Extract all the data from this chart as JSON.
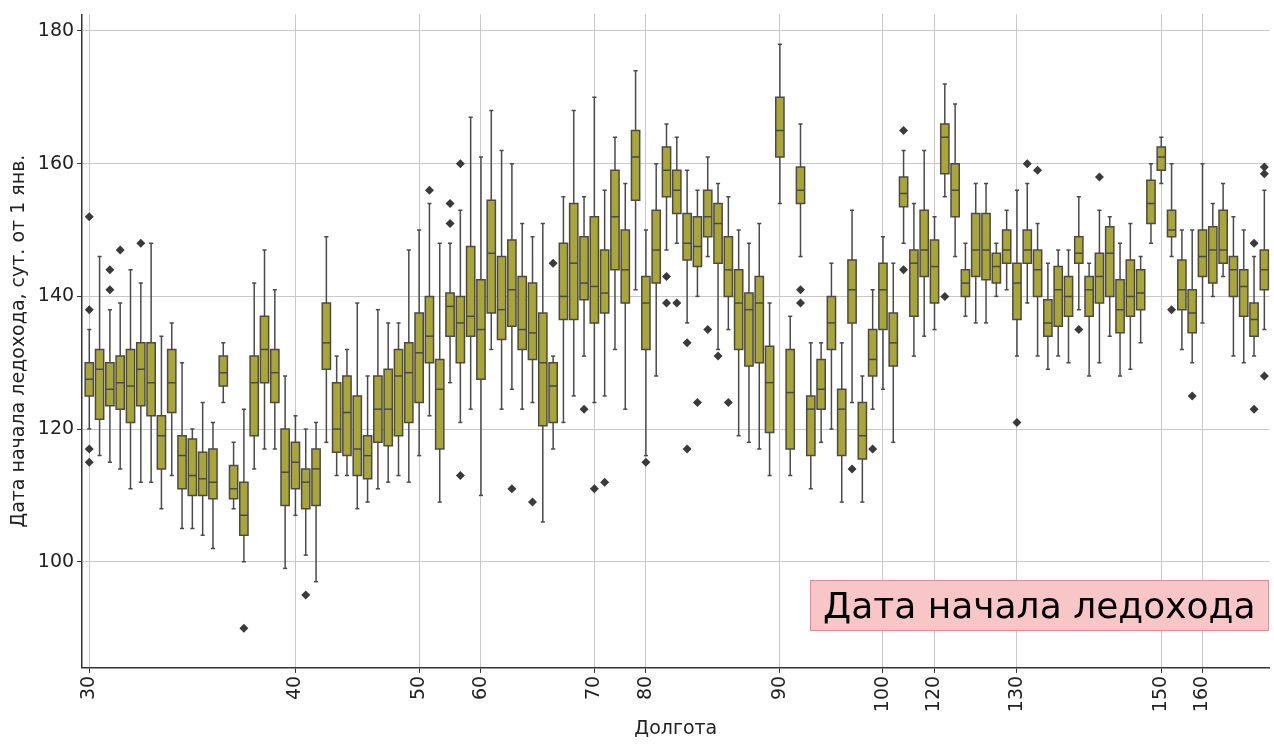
{
  "chart_data": {
    "type": "box",
    "xlabel": "Долгота",
    "ylabel": "Дата начала ледохода, сут. от 1 янв.",
    "color": "#a9a637",
    "grid": true,
    "ylim": [
      84,
      182.5
    ],
    "yticks": [
      100,
      120,
      140,
      160,
      180
    ],
    "annotations": [
      "Дата начала ледохода"
    ],
    "categories": [
      "30",
      null,
      null,
      null,
      null,
      null,
      null,
      null,
      null,
      null,
      null,
      null,
      null,
      null,
      null,
      null,
      null,
      null,
      null,
      null,
      "40",
      null,
      null,
      null,
      null,
      null,
      null,
      null,
      null,
      null,
      null,
      null,
      "50",
      null,
      null,
      null,
      null,
      null,
      "60",
      null,
      null,
      null,
      null,
      null,
      null,
      null,
      null,
      null,
      null,
      "70",
      null,
      null,
      null,
      null,
      "80",
      null,
      null,
      null,
      null,
      null,
      null,
      null,
      null,
      null,
      null,
      null,
      null,
      "90",
      null,
      null,
      null,
      null,
      null,
      null,
      null,
      null,
      null,
      "100",
      null,
      null,
      null,
      null,
      "120",
      null,
      null,
      null,
      null,
      null,
      null,
      null,
      "130",
      null,
      null,
      null,
      null,
      null,
      null,
      null,
      null,
      null,
      null,
      null,
      null,
      null,
      "150",
      null,
      null,
      null,
      "160",
      null,
      null,
      null,
      null,
      null,
      null
    ],
    "boxes": [
      {
        "low": 120,
        "q1": 125,
        "median": 127.5,
        "q3": 130,
        "high": 135,
        "outliers": [
          152,
          138,
          117,
          115
        ]
      },
      {
        "low": 116,
        "q1": 121.5,
        "median": 129,
        "q3": 132,
        "high": 146
      },
      {
        "low": 115,
        "q1": 123.5,
        "median": 126,
        "q3": 130,
        "high": 138,
        "outliers": [
          144,
          141
        ]
      },
      {
        "low": 114,
        "q1": 123,
        "median": 127,
        "q3": 131,
        "high": 139,
        "outliers": [
          147
        ]
      },
      {
        "low": 111,
        "q1": 121,
        "median": 126.5,
        "q3": 132,
        "high": 144
      },
      {
        "low": 112,
        "q1": 123.5,
        "median": 129,
        "q3": 133,
        "high": 142,
        "outliers": [
          148
        ]
      },
      {
        "low": 112,
        "q1": 122,
        "median": 127,
        "q3": 133,
        "high": 148
      },
      {
        "low": 108,
        "q1": 114,
        "median": 119,
        "q3": 122,
        "high": 134
      },
      {
        "low": 113,
        "q1": 122.5,
        "median": 127,
        "q3": 132,
        "high": 136
      },
      {
        "low": 105,
        "q1": 111,
        "median": 116,
        "q3": 119,
        "high": 130
      },
      {
        "low": 105,
        "q1": 110,
        "median": 113,
        "q3": 118.5,
        "high": 120
      },
      {
        "low": 104,
        "q1": 110,
        "median": 112.5,
        "q3": 116.5,
        "high": 124
      },
      {
        "low": 102,
        "q1": 109.5,
        "median": 112,
        "q3": 117,
        "high": 121
      },
      {
        "low": 124,
        "q1": 126.5,
        "median": 128.5,
        "q3": 131,
        "high": 133
      },
      {
        "low": 108,
        "q1": 109.5,
        "median": 111,
        "q3": 114.5,
        "high": 118
      },
      {
        "low": 100,
        "q1": 104,
        "median": 107,
        "q3": 112,
        "high": 123,
        "outliers": [
          90
        ]
      },
      {
        "low": 114,
        "q1": 119,
        "median": 127,
        "q3": 131,
        "high": 142
      },
      {
        "low": 117,
        "q1": 127,
        "median": 132,
        "q3": 137,
        "high": 147
      },
      {
        "low": 117,
        "q1": 124,
        "median": 128.5,
        "q3": 132,
        "high": 141
      },
      {
        "low": 99,
        "q1": 108.5,
        "median": 113.5,
        "q3": 120,
        "high": 128
      },
      {
        "low": 107,
        "q1": 111,
        "median": 115,
        "q3": 118,
        "high": 122
      },
      {
        "low": 101,
        "q1": 108,
        "median": 112,
        "q3": 114,
        "high": 120,
        "outliers": [
          95
        ]
      },
      {
        "low": 97,
        "q1": 108.5,
        "median": 114,
        "q3": 117,
        "high": 121
      },
      {
        "low": 118,
        "q1": 129,
        "median": 133,
        "q3": 139,
        "high": 149
      },
      {
        "low": 113,
        "q1": 116.5,
        "median": 120,
        "q3": 127,
        "high": 131
      },
      {
        "low": 113,
        "q1": 116,
        "median": 122.5,
        "q3": 128,
        "high": 132
      },
      {
        "low": 108,
        "q1": 113,
        "median": 117,
        "q3": 125,
        "high": 139
      },
      {
        "low": 109,
        "q1": 112.5,
        "median": 116,
        "q3": 119,
        "high": 128
      },
      {
        "low": 111,
        "q1": 118,
        "median": 123,
        "q3": 128,
        "high": 138
      },
      {
        "low": 112,
        "q1": 117.5,
        "median": 123,
        "q3": 129,
        "high": 136
      },
      {
        "low": 113,
        "q1": 119,
        "median": 128,
        "q3": 132,
        "high": 136
      },
      {
        "low": 112,
        "q1": 121,
        "median": 128.5,
        "q3": 133,
        "high": 147
      },
      {
        "low": 116,
        "q1": 124,
        "median": 131.5,
        "q3": 137.5,
        "high": 150
      },
      {
        "low": 122,
        "q1": 130,
        "median": 134,
        "q3": 140,
        "high": 154,
        "outliers": [
          156
        ]
      },
      {
        "low": 109,
        "q1": 117,
        "median": 126,
        "q3": 130.5,
        "high": 148
      },
      {
        "low": 127,
        "q1": 134,
        "median": 138.5,
        "q3": 140.5,
        "high": 148,
        "outliers": [
          154,
          151
        ]
      },
      {
        "low": 121,
        "q1": 130,
        "median": 136,
        "q3": 140,
        "high": 153,
        "outliers": [
          160,
          113
        ]
      },
      {
        "low": 123,
        "q1": 134,
        "median": 137,
        "q3": 147.5,
        "high": 167
      },
      {
        "low": 110,
        "q1": 127.5,
        "median": 135,
        "q3": 142.5,
        "high": 161
      },
      {
        "low": 132,
        "q1": 137.5,
        "median": 146.5,
        "q3": 154.5,
        "high": 168
      },
      {
        "low": 123,
        "q1": 133.5,
        "median": 138,
        "q3": 146,
        "high": 162
      },
      {
        "low": 126,
        "q1": 135.5,
        "median": 141,
        "q3": 148.5,
        "high": 160,
        "outliers": [
          111
        ]
      },
      {
        "low": 123,
        "q1": 132,
        "median": 135,
        "q3": 143,
        "high": 151
      },
      {
        "low": 124,
        "q1": 130.5,
        "median": 134.5,
        "q3": 142,
        "high": 149,
        "outliers": [
          109
        ]
      },
      {
        "low": 106,
        "q1": 120.5,
        "median": 130,
        "q3": 137.5,
        "high": 151
      },
      {
        "low": 117,
        "q1": 121,
        "median": 126.5,
        "q3": 130,
        "high": 131,
        "outliers": [
          145
        ]
      },
      {
        "low": 121,
        "q1": 136.5,
        "median": 140,
        "q3": 148,
        "high": 155
      },
      {
        "low": 125,
        "q1": 136.5,
        "median": 145,
        "q3": 154,
        "high": 168
      },
      {
        "low": 131,
        "q1": 139.5,
        "median": 142,
        "q3": 149,
        "high": 155,
        "outliers": [
          123
        ]
      },
      {
        "low": 124,
        "q1": 136,
        "median": 141.5,
        "q3": 152,
        "high": 170,
        "outliers": [
          111
        ]
      },
      {
        "low": 125,
        "q1": 137.5,
        "median": 140.5,
        "q3": 147,
        "high": 156,
        "outliers": [
          112
        ]
      },
      {
        "low": 132,
        "q1": 144,
        "median": 152,
        "q3": 159,
        "high": 164
      },
      {
        "low": 123,
        "q1": 139,
        "median": 144,
        "q3": 150,
        "high": 157
      },
      {
        "low": 141,
        "q1": 154.5,
        "median": 161,
        "q3": 165,
        "high": 174
      },
      {
        "low": 116,
        "q1": 132,
        "median": 139,
        "q3": 143,
        "high": 150,
        "outliers": [
          115
        ]
      },
      {
        "low": 128,
        "q1": 142,
        "median": 147,
        "q3": 153,
        "high": 160
      },
      {
        "low": 147,
        "q1": 155,
        "median": 159,
        "q3": 162.5,
        "high": 166,
        "outliers": [
          143,
          139
        ]
      },
      {
        "low": 148,
        "q1": 152.5,
        "median": 156,
        "q3": 159,
        "high": 164,
        "outliers": [
          139
        ]
      },
      {
        "low": 136,
        "q1": 145.5,
        "median": 148,
        "q3": 152.5,
        "high": 159,
        "outliers": [
          133,
          117
        ]
      },
      {
        "low": 140,
        "q1": 144.5,
        "median": 147.5,
        "q3": 152,
        "high": 156,
        "outliers": [
          124
        ]
      },
      {
        "low": 146,
        "q1": 149,
        "median": 152,
        "q3": 156,
        "high": 161,
        "outliers": [
          135
        ]
      },
      {
        "low": 132,
        "q1": 145,
        "median": 151,
        "q3": 154,
        "high": 157,
        "outliers": [
          131
        ]
      },
      {
        "low": 135,
        "q1": 140,
        "median": 144,
        "q3": 149,
        "high": 155,
        "outliers": [
          124
        ]
      },
      {
        "low": 119,
        "q1": 132,
        "median": 139,
        "q3": 144,
        "high": 150
      },
      {
        "low": 118,
        "q1": 129.5,
        "median": 138,
        "q3": 140.5,
        "high": 148
      },
      {
        "low": 117,
        "q1": 130,
        "median": 139,
        "q3": 143,
        "high": 151
      },
      {
        "low": 113,
        "q1": 119.5,
        "median": 127,
        "q3": 132.5,
        "high": 139
      },
      {
        "low": 154,
        "q1": 161,
        "median": 165,
        "q3": 170,
        "high": 178
      },
      {
        "low": 113,
        "q1": 117,
        "median": 125.5,
        "q3": 132,
        "high": 137
      },
      {
        "low": 146,
        "q1": 154,
        "median": 156,
        "q3": 159.5,
        "high": 166,
        "outliers": [
          141,
          139
        ]
      },
      {
        "low": 111,
        "q1": 116,
        "median": 123,
        "q3": 125,
        "high": 133
      },
      {
        "low": 118,
        "q1": 123,
        "median": 126,
        "q3": 130.5,
        "high": 133
      },
      {
        "low": 120,
        "q1": 132,
        "median": 136,
        "q3": 140,
        "high": 145
      },
      {
        "low": 109,
        "q1": 116,
        "median": 123,
        "q3": 126,
        "high": 133
      },
      {
        "low": 124,
        "q1": 136,
        "median": 141,
        "q3": 145.5,
        "high": 153,
        "outliers": [
          114
        ]
      },
      {
        "low": 109,
        "q1": 115.5,
        "median": 119,
        "q3": 124,
        "high": 128
      },
      {
        "low": 123,
        "q1": 128,
        "median": 130.5,
        "q3": 135,
        "high": 141,
        "outliers": [
          117
        ]
      },
      {
        "low": 126,
        "q1": 135,
        "median": 141,
        "q3": 145,
        "high": 149
      },
      {
        "low": 118,
        "q1": 129.5,
        "median": 133,
        "q3": 137.5,
        "high": 145
      },
      {
        "low": 148,
        "q1": 153.5,
        "median": 155.5,
        "q3": 158,
        "high": 162,
        "outliers": [
          165,
          144
        ]
      },
      {
        "low": 131,
        "q1": 137,
        "median": 145,
        "q3": 147,
        "high": 154
      },
      {
        "low": 134,
        "q1": 143,
        "median": 147,
        "q3": 153,
        "high": 162
      },
      {
        "low": 135,
        "q1": 139,
        "median": 144.5,
        "q3": 148.5,
        "high": 152
      },
      {
        "low": 155,
        "q1": 158.5,
        "median": 164,
        "q3": 166,
        "high": 172,
        "outliers": [
          140
        ]
      },
      {
        "low": 146,
        "q1": 152,
        "median": 156,
        "q3": 160,
        "high": 169
      },
      {
        "low": 137,
        "q1": 140,
        "median": 142,
        "q3": 144,
        "high": 148
      },
      {
        "low": 136,
        "q1": 143,
        "median": 147,
        "q3": 152.5,
        "high": 157
      },
      {
        "low": 136,
        "q1": 142.5,
        "median": 147,
        "q3": 152.5,
        "high": 157
      },
      {
        "low": 140,
        "q1": 142,
        "median": 144.5,
        "q3": 146.5,
        "high": 148
      },
      {
        "low": 141,
        "q1": 145,
        "median": 147,
        "q3": 150,
        "high": 153
      },
      {
        "low": 131,
        "q1": 136.5,
        "median": 142,
        "q3": 145,
        "high": 156,
        "outliers": [
          121
        ]
      },
      {
        "low": 139,
        "q1": 145,
        "median": 147,
        "q3": 150,
        "high": 157,
        "outliers": [
          160
        ]
      },
      {
        "low": 131,
        "q1": 140,
        "median": 144,
        "q3": 147,
        "high": 151,
        "outliers": [
          159
        ]
      },
      {
        "low": 129,
        "q1": 134,
        "median": 136,
        "q3": 139.5,
        "high": 145
      },
      {
        "low": 131,
        "q1": 135.5,
        "median": 141,
        "q3": 144.5,
        "high": 147
      },
      {
        "low": 130,
        "q1": 137,
        "median": 140,
        "q3": 143,
        "high": 147
      },
      {
        "low": 138,
        "q1": 145,
        "median": 146.5,
        "q3": 149,
        "high": 155,
        "outliers": [
          135
        ]
      },
      {
        "low": 128,
        "q1": 137,
        "median": 141,
        "q3": 143,
        "high": 145
      },
      {
        "low": 130,
        "q1": 139,
        "median": 143,
        "q3": 146.5,
        "high": 153,
        "outliers": [
          158
        ]
      },
      {
        "low": 134,
        "q1": 140,
        "median": 146.5,
        "q3": 150.5,
        "high": 152
      },
      {
        "low": 128,
        "q1": 134.5,
        "median": 138,
        "q3": 142.5,
        "high": 148
      },
      {
        "low": 129,
        "q1": 137,
        "median": 140,
        "q3": 145.5,
        "high": 151
      },
      {
        "low": 133,
        "q1": 138,
        "median": 140.5,
        "q3": 144,
        "high": 146
      },
      {
        "low": 148,
        "q1": 151,
        "median": 154,
        "q3": 157.5,
        "high": 160
      },
      {
        "low": 157,
        "q1": 159,
        "median": 161,
        "q3": 162.5,
        "high": 164
      },
      {
        "low": 146,
        "q1": 149,
        "median": 150,
        "q3": 153,
        "high": 160,
        "outliers": [
          138
        ]
      },
      {
        "low": 132,
        "q1": 138,
        "median": 141,
        "q3": 145.5,
        "high": 150
      },
      {
        "low": 130,
        "q1": 134.5,
        "median": 137.5,
        "q3": 141,
        "high": 150,
        "outliers": [
          125
        ]
      },
      {
        "low": 136,
        "q1": 143,
        "median": 146,
        "q3": 150,
        "high": 160
      },
      {
        "low": 140,
        "q1": 142,
        "median": 147,
        "q3": 150.5,
        "high": 154
      },
      {
        "low": 143,
        "q1": 145,
        "median": 147,
        "q3": 153,
        "high": 157
      },
      {
        "low": 131,
        "q1": 140,
        "median": 144,
        "q3": 146,
        "high": 152
      },
      {
        "low": 130,
        "q1": 137,
        "median": 141.5,
        "q3": 144,
        "high": 150
      },
      {
        "low": 131,
        "q1": 134,
        "median": 136.5,
        "q3": 139,
        "high": 146,
        "outliers": [
          148,
          123
        ]
      },
      {
        "low": 135,
        "q1": 141,
        "median": 144,
        "q3": 147,
        "high": 156,
        "outliers": [
          159.5,
          158.5,
          128
        ]
      }
    ]
  }
}
